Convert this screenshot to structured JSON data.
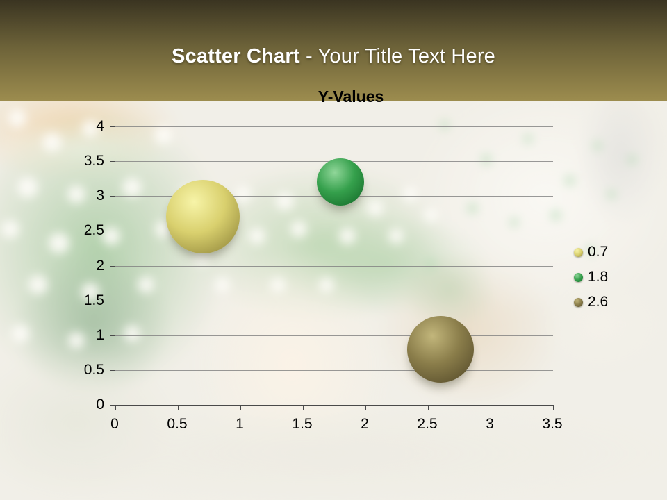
{
  "header": {
    "title_bold": "Scatter Chart",
    "title_rest": "- Your Title Text Here",
    "colors": {
      "gradient_top": "#3a3421",
      "gradient_mid": "#6b6138",
      "gradient_bottom": "#9c8c4e",
      "title_text": "#ffffff"
    }
  },
  "chart_data": {
    "type": "scatter",
    "title": "Y-Values",
    "grid": true,
    "legend_position": "right",
    "x_axis": {
      "min": 0,
      "max": 3.5,
      "tick_step": 0.5,
      "tick_labels": [
        "0",
        "0.5",
        "1",
        "1.5",
        "2",
        "2.5",
        "3",
        "3.5"
      ]
    },
    "y_axis": {
      "min": 0,
      "max": 4,
      "tick_step": 0.5,
      "tick_labels": [
        "0",
        "0.5",
        "1",
        "1.5",
        "2",
        "2.5",
        "3",
        "3.5",
        "4"
      ]
    },
    "series": [
      {
        "name": "0.7",
        "points": [
          {
            "x": 0.7,
            "y": 2.7
          }
        ],
        "bubble_radius_px": 53,
        "colors": {
          "highlight": "#f7f4a8",
          "mid": "#d9d06e",
          "dark": "#a59b49",
          "rim": "#6e6534"
        }
      },
      {
        "name": "1.8",
        "points": [
          {
            "x": 1.8,
            "y": 3.2
          }
        ],
        "bubble_radius_px": 34,
        "colors": {
          "highlight": "#90d699",
          "mid": "#35a04c",
          "dark": "#1e7a33",
          "rim": "#124d20"
        }
      },
      {
        "name": "2.6",
        "points": [
          {
            "x": 2.6,
            "y": 0.8
          }
        ],
        "bubble_radius_px": 48,
        "colors": {
          "highlight": "#c2b67b",
          "mid": "#8a7d4a",
          "dark": "#645933",
          "rim": "#433c21"
        }
      }
    ],
    "axis_color": "#4a4a4a",
    "gridline_color": "#7f7f7f",
    "tick_label_color": "#000000"
  }
}
